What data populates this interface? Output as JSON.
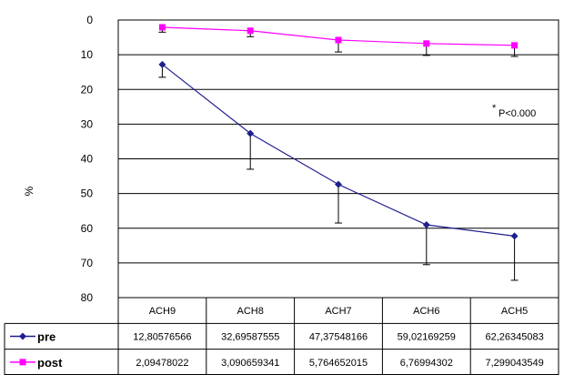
{
  "chart_data": {
    "type": "line",
    "categories": [
      "ACH9",
      "ACH8",
      "ACH7",
      "ACH6",
      "ACH5"
    ],
    "ylabel": "%",
    "ylim": [
      80,
      0
    ],
    "y_ticks": [
      "0",
      "10",
      "20",
      "30",
      "40",
      "50",
      "60",
      "70",
      "80"
    ],
    "y_tick_values": [
      0,
      10,
      20,
      30,
      40,
      50,
      60,
      70,
      80
    ],
    "grid": true,
    "annotation_star": "*",
    "annotation": "P<0.000",
    "series": [
      {
        "name": "pre",
        "color": "#1f1f8f",
        "marker": "diamond",
        "values": [
          12.80576566,
          32.69587555,
          47.37548166,
          59.02169259,
          62.26345083
        ],
        "labels": [
          "12,80576566",
          "32,69587555",
          "47,37548166",
          "59,02169259",
          "62,26345083"
        ],
        "error_hi": [
          16.5,
          43,
          58.5,
          70.5,
          75
        ]
      },
      {
        "name": "post",
        "color": "#ff00ff",
        "marker": "square",
        "values": [
          2.09478022,
          3.090659341,
          5.764652015,
          6.76994302,
          7.299043549
        ],
        "labels": [
          "2,09478022",
          "3,090659341",
          "5,764652015",
          "6,76994302",
          "7,299043549"
        ],
        "error_hi": [
          3.5,
          4.8,
          9.2,
          10.2,
          10.5
        ]
      }
    ]
  }
}
